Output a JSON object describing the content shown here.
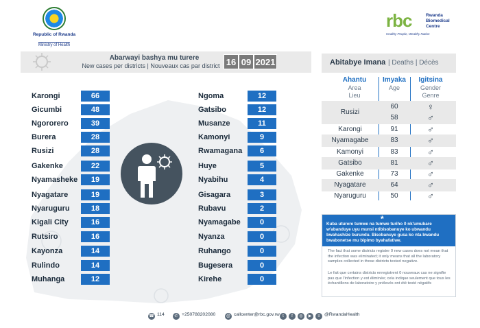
{
  "header": {
    "rw_line1": "Republic of Rwanda",
    "rw_line2": "Ministry of Health",
    "rbc_word": "rbc",
    "rbc_name": "Rwanda Biomedical Centre",
    "rbc_tagline": "Healthy People, Wealthy Nation"
  },
  "cases": {
    "title": "Abarwayi bashya mu turere",
    "subtitle": "New cases per districts  |  Nouveaux cas par district",
    "date_day": "16",
    "date_month": "09",
    "date_year": "2021",
    "left": [
      {
        "district": "Karongi",
        "value": "66"
      },
      {
        "district": "Gicumbi",
        "value": "48"
      },
      {
        "district": "Ngororero",
        "value": "39"
      },
      {
        "district": "Burera",
        "value": "28"
      },
      {
        "district": "Rusizi",
        "value": "28"
      },
      {
        "district": "Gakenke",
        "value": "22"
      },
      {
        "district": "Nyamasheke",
        "value": "19"
      },
      {
        "district": "Nyagatare",
        "value": "19"
      },
      {
        "district": "Nyaruguru",
        "value": "18"
      },
      {
        "district": "Kigali City",
        "value": "16"
      },
      {
        "district": "Rutsiro",
        "value": "16"
      },
      {
        "district": "Kayonza",
        "value": "14"
      },
      {
        "district": "Rulindo",
        "value": "14"
      },
      {
        "district": "Muhanga",
        "value": "12"
      }
    ],
    "right": [
      {
        "district": "Ngoma",
        "value": "12"
      },
      {
        "district": "Gatsibo",
        "value": "12"
      },
      {
        "district": "Musanze",
        "value": "11"
      },
      {
        "district": "Kamonyi",
        "value": "9"
      },
      {
        "district": "Rwamagana",
        "value": "6"
      },
      {
        "district": "Huye",
        "value": "5"
      },
      {
        "district": "Nyabihu",
        "value": "4"
      },
      {
        "district": "Gisagara",
        "value": "3"
      },
      {
        "district": "Rubavu",
        "value": "2"
      },
      {
        "district": "Nyamagabe",
        "value": "0"
      },
      {
        "district": "Nyanza",
        "value": "0"
      },
      {
        "district": "Ruhango",
        "value": "0"
      },
      {
        "district": "Bugesera",
        "value": "0"
      },
      {
        "district": "Kirehe",
        "value": "0"
      }
    ]
  },
  "deaths": {
    "title": "Abitabye Imana",
    "subtitle": "|  Deaths  |  Décès",
    "col_area": "Ahantu",
    "col_area_sub1": "Area",
    "col_area_sub2": "Lieu",
    "col_age": "Imyaka",
    "col_age_sub": "Age",
    "col_gender": "Igitsina",
    "col_gender_sub1": "Gender",
    "col_gender_sub2": "Genre",
    "rows": [
      {
        "place": "Rusizi",
        "age": "60",
        "sex": "♀"
      },
      {
        "place": "",
        "age": "58",
        "sex": "♂"
      },
      {
        "place": "Karongi",
        "age": "91",
        "sex": "♂"
      },
      {
        "place": "Nyamagabe",
        "age": "83",
        "sex": "♂"
      },
      {
        "place": "Kamonyi",
        "age": "83",
        "sex": "♂"
      },
      {
        "place": "Gatsibo",
        "age": "81",
        "sex": "♂"
      },
      {
        "place": "Gakenke",
        "age": "73",
        "sex": "♂"
      },
      {
        "place": "Nyagatare",
        "age": "64",
        "sex": "♂"
      },
      {
        "place": "Nyaruguru",
        "age": "50",
        "sex": "♂"
      }
    ]
  },
  "note": {
    "star": "*",
    "kinyarwanda": "Kuba uturere tumwe na tumwe turiho 0 nk'umubare w'abanduye uyu munsi ntibisobanuye ko ubwandu bwahashize burundu. Bisobanuye gusa ko nta bwandu bwabonetse mu bipimo byahafatiwe.",
    "english": "The fact that some districts register 0 new cases does not mean that the infection was eliminated; it only means that all the laboratory samples collected in those districts tested negative.",
    "french": "Le fait que certains districts enregistrent 0 nouveaux cas ne signifie pas que l'infection y est éliminée; cela indique seulement que tous les échantillons de laboratoire y prélevés ont été testé négatifs"
  },
  "footer": {
    "hotline": "114",
    "phone": "+250788202080",
    "email": "callcenter@rbc.gov.rw",
    "social": "@RwandaHealth"
  },
  "colors": {
    "value_box": "#1f6fc2",
    "title_bar": "#eaeaea",
    "date_box": "#7a7a7a",
    "accent_blue": "#1e6fc2"
  }
}
